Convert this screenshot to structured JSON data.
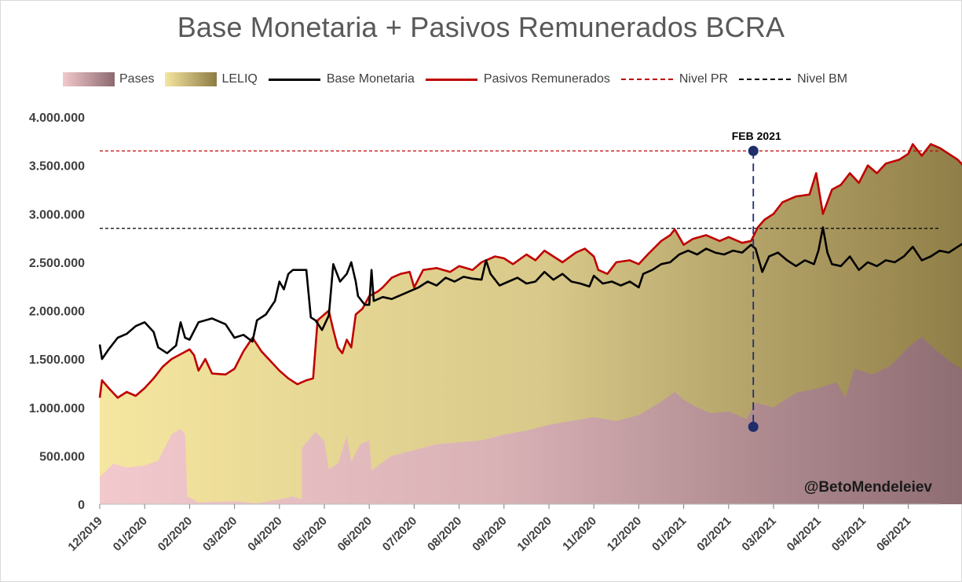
{
  "title": "Base Monetaria + Pasivos Remunerados BCRA",
  "legend": {
    "pases": "Pases",
    "leliq": "LELIQ",
    "bm": "Base Monetaria",
    "pr": "Pasivos Remunerados",
    "nivel_pr": "Nivel PR",
    "nivel_bm": "Nivel BM"
  },
  "colors": {
    "pases_light": "#f2c9cc",
    "pases_dark": "#8b6a70",
    "leliq_light": "#f5e6a0",
    "leliq_dark": "#8d7b45",
    "bm_line": "#000000",
    "pr_line": "#c00000",
    "marker": "#1f2d6b",
    "axis_text": "#404040"
  },
  "watermark": "@BetoMendeleiev",
  "chart_data": {
    "type": "area",
    "title": "Base Monetaria + Pasivos Remunerados BCRA",
    "xlabel": "",
    "ylabel": "",
    "ylim": [
      0,
      4000000
    ],
    "y_ticks": [
      0,
      500000,
      1000000,
      1500000,
      2000000,
      2500000,
      3000000,
      3500000,
      4000000
    ],
    "y_tick_labels": [
      "0",
      "500.000",
      "1.000.000",
      "1.500.000",
      "2.000.000",
      "2.500.000",
      "3.000.000",
      "3.500.000",
      "4.000.000"
    ],
    "x_range": [
      0,
      19.7
    ],
    "x_ticks": [
      0,
      1,
      2,
      3,
      4,
      5,
      6,
      7,
      8,
      9,
      10,
      11,
      12,
      13,
      14,
      15,
      16,
      17,
      18
    ],
    "x_tick_labels": [
      "12/2019",
      "01/2020",
      "02/2020",
      "03/2020",
      "04/2020",
      "05/2020",
      "06/2020",
      "07/2020",
      "08/2020",
      "09/2020",
      "10/2020",
      "11/2020",
      "12/2020",
      "01/2021",
      "02/2021",
      "03/2021",
      "04/2021",
      "05/2021",
      "06/2021"
    ],
    "x_note": "x in months since 12/2019",
    "series": [
      {
        "name": "Pases",
        "type": "area",
        "points": [
          [
            0,
            280000
          ],
          [
            0.3,
            420000
          ],
          [
            0.6,
            380000
          ],
          [
            1.0,
            400000
          ],
          [
            1.3,
            450000
          ],
          [
            1.6,
            720000
          ],
          [
            1.8,
            780000
          ],
          [
            1.9,
            720000
          ],
          [
            1.95,
            80000
          ],
          [
            2.2,
            20000
          ],
          [
            3.0,
            30000
          ],
          [
            3.5,
            10000
          ],
          [
            4.0,
            50000
          ],
          [
            4.3,
            80000
          ],
          [
            4.5,
            50000
          ],
          [
            4.5,
            580000
          ],
          [
            4.8,
            750000
          ],
          [
            5.0,
            650000
          ],
          [
            5.1,
            360000
          ],
          [
            5.3,
            420000
          ],
          [
            5.5,
            700000
          ],
          [
            5.6,
            440000
          ],
          [
            5.8,
            620000
          ],
          [
            6.0,
            660000
          ],
          [
            6.05,
            350000
          ],
          [
            6.5,
            500000
          ],
          [
            7.0,
            560000
          ],
          [
            7.5,
            620000
          ],
          [
            8.0,
            640000
          ],
          [
            8.5,
            660000
          ],
          [
            9.0,
            720000
          ],
          [
            9.5,
            760000
          ],
          [
            10.0,
            820000
          ],
          [
            10.5,
            860000
          ],
          [
            11.0,
            900000
          ],
          [
            11.5,
            860000
          ],
          [
            12.0,
            920000
          ],
          [
            12.5,
            1060000
          ],
          [
            12.8,
            1160000
          ],
          [
            13.0,
            1080000
          ],
          [
            13.3,
            1000000
          ],
          [
            13.6,
            940000
          ],
          [
            14.0,
            960000
          ],
          [
            14.4,
            880000
          ],
          [
            14.6,
            1050000
          ],
          [
            15.0,
            1000000
          ],
          [
            15.5,
            1150000
          ],
          [
            16.0,
            1200000
          ],
          [
            16.4,
            1260000
          ],
          [
            16.6,
            1100000
          ],
          [
            16.8,
            1400000
          ],
          [
            17.2,
            1340000
          ],
          [
            17.6,
            1430000
          ],
          [
            18.0,
            1620000
          ],
          [
            18.3,
            1730000
          ],
          [
            18.6,
            1600000
          ],
          [
            19.0,
            1450000
          ],
          [
            19.3,
            1370000
          ],
          [
            19.6,
            1590000
          ]
        ]
      },
      {
        "name": "LELIQ",
        "type": "area",
        "note": "stacked on Pases; top equals Pasivos Remunerados"
      },
      {
        "name": "Base Monetaria",
        "type": "line",
        "points": [
          [
            0,
            1650000
          ],
          [
            0.05,
            1500000
          ],
          [
            0.2,
            1600000
          ],
          [
            0.4,
            1720000
          ],
          [
            0.6,
            1760000
          ],
          [
            0.8,
            1840000
          ],
          [
            1.0,
            1880000
          ],
          [
            1.2,
            1780000
          ],
          [
            1.3,
            1620000
          ],
          [
            1.5,
            1560000
          ],
          [
            1.7,
            1640000
          ],
          [
            1.8,
            1880000
          ],
          [
            1.9,
            1720000
          ],
          [
            2.0,
            1700000
          ],
          [
            2.2,
            1880000
          ],
          [
            2.5,
            1920000
          ],
          [
            2.8,
            1860000
          ],
          [
            3.0,
            1720000
          ],
          [
            3.2,
            1750000
          ],
          [
            3.4,
            1680000
          ],
          [
            3.5,
            1900000
          ],
          [
            3.7,
            1960000
          ],
          [
            3.9,
            2100000
          ],
          [
            4.0,
            2300000
          ],
          [
            4.1,
            2220000
          ],
          [
            4.2,
            2380000
          ],
          [
            4.3,
            2420000
          ],
          [
            4.5,
            2420000
          ],
          [
            4.6,
            2420000
          ],
          [
            4.7,
            1930000
          ],
          [
            4.8,
            1900000
          ],
          [
            4.95,
            1800000
          ],
          [
            5.1,
            1950000
          ],
          [
            5.2,
            2480000
          ],
          [
            5.35,
            2300000
          ],
          [
            5.5,
            2380000
          ],
          [
            5.6,
            2500000
          ],
          [
            5.7,
            2300000
          ],
          [
            5.75,
            2150000
          ],
          [
            5.9,
            2060000
          ],
          [
            6.0,
            2060000
          ],
          [
            6.05,
            2420000
          ],
          [
            6.1,
            2100000
          ],
          [
            6.3,
            2140000
          ],
          [
            6.5,
            2120000
          ],
          [
            6.7,
            2160000
          ],
          [
            6.9,
            2200000
          ],
          [
            7.1,
            2240000
          ],
          [
            7.3,
            2300000
          ],
          [
            7.5,
            2260000
          ],
          [
            7.7,
            2340000
          ],
          [
            7.9,
            2300000
          ],
          [
            8.1,
            2350000
          ],
          [
            8.3,
            2330000
          ],
          [
            8.5,
            2320000
          ],
          [
            8.6,
            2520000
          ],
          [
            8.7,
            2380000
          ],
          [
            8.9,
            2260000
          ],
          [
            9.1,
            2300000
          ],
          [
            9.3,
            2340000
          ],
          [
            9.5,
            2280000
          ],
          [
            9.7,
            2300000
          ],
          [
            9.9,
            2400000
          ],
          [
            10.1,
            2320000
          ],
          [
            10.3,
            2380000
          ],
          [
            10.5,
            2300000
          ],
          [
            10.7,
            2280000
          ],
          [
            10.9,
            2250000
          ],
          [
            11.0,
            2360000
          ],
          [
            11.2,
            2280000
          ],
          [
            11.4,
            2300000
          ],
          [
            11.6,
            2260000
          ],
          [
            11.8,
            2300000
          ],
          [
            12.0,
            2240000
          ],
          [
            12.1,
            2380000
          ],
          [
            12.3,
            2420000
          ],
          [
            12.5,
            2480000
          ],
          [
            12.7,
            2500000
          ],
          [
            12.9,
            2580000
          ],
          [
            13.1,
            2620000
          ],
          [
            13.3,
            2580000
          ],
          [
            13.5,
            2640000
          ],
          [
            13.7,
            2600000
          ],
          [
            13.9,
            2580000
          ],
          [
            14.1,
            2620000
          ],
          [
            14.3,
            2600000
          ],
          [
            14.5,
            2680000
          ],
          [
            14.6,
            2640000
          ],
          [
            14.75,
            2400000
          ],
          [
            14.9,
            2560000
          ],
          [
            15.1,
            2600000
          ],
          [
            15.3,
            2520000
          ],
          [
            15.5,
            2460000
          ],
          [
            15.7,
            2520000
          ],
          [
            15.9,
            2480000
          ],
          [
            16.0,
            2620000
          ],
          [
            16.1,
            2860000
          ],
          [
            16.2,
            2600000
          ],
          [
            16.3,
            2480000
          ],
          [
            16.5,
            2460000
          ],
          [
            16.7,
            2560000
          ],
          [
            16.9,
            2420000
          ],
          [
            17.1,
            2500000
          ],
          [
            17.3,
            2460000
          ],
          [
            17.5,
            2520000
          ],
          [
            17.7,
            2500000
          ],
          [
            17.9,
            2560000
          ],
          [
            18.1,
            2660000
          ],
          [
            18.3,
            2520000
          ],
          [
            18.5,
            2560000
          ],
          [
            18.7,
            2620000
          ],
          [
            18.9,
            2600000
          ],
          [
            19.1,
            2660000
          ],
          [
            19.3,
            2720000
          ],
          [
            19.45,
            2900000
          ],
          [
            19.6,
            2800000
          ]
        ]
      },
      {
        "name": "Pasivos Remunerados",
        "type": "line",
        "points": [
          [
            0,
            1100000
          ],
          [
            0.05,
            1280000
          ],
          [
            0.2,
            1200000
          ],
          [
            0.4,
            1100000
          ],
          [
            0.6,
            1160000
          ],
          [
            0.8,
            1120000
          ],
          [
            1.0,
            1200000
          ],
          [
            1.2,
            1300000
          ],
          [
            1.4,
            1420000
          ],
          [
            1.6,
            1500000
          ],
          [
            1.8,
            1550000
          ],
          [
            2.0,
            1600000
          ],
          [
            2.1,
            1540000
          ],
          [
            2.2,
            1380000
          ],
          [
            2.35,
            1500000
          ],
          [
            2.5,
            1350000
          ],
          [
            2.8,
            1340000
          ],
          [
            3.0,
            1400000
          ],
          [
            3.2,
            1580000
          ],
          [
            3.4,
            1720000
          ],
          [
            3.6,
            1580000
          ],
          [
            3.8,
            1480000
          ],
          [
            4.0,
            1380000
          ],
          [
            4.2,
            1300000
          ],
          [
            4.4,
            1240000
          ],
          [
            4.6,
            1280000
          ],
          [
            4.75,
            1300000
          ],
          [
            4.85,
            1900000
          ],
          [
            5.0,
            1960000
          ],
          [
            5.1,
            2000000
          ],
          [
            5.2,
            1800000
          ],
          [
            5.3,
            1620000
          ],
          [
            5.4,
            1560000
          ],
          [
            5.5,
            1700000
          ],
          [
            5.6,
            1620000
          ],
          [
            5.7,
            1960000
          ],
          [
            5.85,
            2020000
          ],
          [
            6.0,
            2150000
          ],
          [
            6.2,
            2200000
          ],
          [
            6.3,
            2240000
          ],
          [
            6.5,
            2340000
          ],
          [
            6.7,
            2380000
          ],
          [
            6.9,
            2400000
          ],
          [
            7.0,
            2240000
          ],
          [
            7.2,
            2420000
          ],
          [
            7.5,
            2440000
          ],
          [
            7.8,
            2400000
          ],
          [
            8.0,
            2460000
          ],
          [
            8.3,
            2420000
          ],
          [
            8.5,
            2500000
          ],
          [
            8.8,
            2560000
          ],
          [
            9.0,
            2540000
          ],
          [
            9.2,
            2480000
          ],
          [
            9.5,
            2580000
          ],
          [
            9.7,
            2520000
          ],
          [
            9.9,
            2620000
          ],
          [
            10.1,
            2560000
          ],
          [
            10.3,
            2500000
          ],
          [
            10.6,
            2600000
          ],
          [
            10.8,
            2640000
          ],
          [
            11.0,
            2560000
          ],
          [
            11.1,
            2420000
          ],
          [
            11.3,
            2380000
          ],
          [
            11.5,
            2500000
          ],
          [
            11.8,
            2520000
          ],
          [
            12.0,
            2480000
          ],
          [
            12.2,
            2580000
          ],
          [
            12.5,
            2720000
          ],
          [
            12.7,
            2780000
          ],
          [
            12.8,
            2840000
          ],
          [
            13.0,
            2680000
          ],
          [
            13.2,
            2740000
          ],
          [
            13.5,
            2780000
          ],
          [
            13.8,
            2720000
          ],
          [
            14.0,
            2760000
          ],
          [
            14.3,
            2700000
          ],
          [
            14.5,
            2720000
          ],
          [
            14.65,
            2860000
          ],
          [
            14.8,
            2940000
          ],
          [
            15.0,
            3000000
          ],
          [
            15.2,
            3120000
          ],
          [
            15.5,
            3180000
          ],
          [
            15.8,
            3200000
          ],
          [
            15.95,
            3420000
          ],
          [
            16.1,
            3000000
          ],
          [
            16.3,
            3250000
          ],
          [
            16.5,
            3300000
          ],
          [
            16.7,
            3420000
          ],
          [
            16.9,
            3320000
          ],
          [
            17.1,
            3500000
          ],
          [
            17.3,
            3420000
          ],
          [
            17.5,
            3520000
          ],
          [
            17.8,
            3560000
          ],
          [
            18.0,
            3620000
          ],
          [
            18.1,
            3720000
          ],
          [
            18.3,
            3600000
          ],
          [
            18.5,
            3720000
          ],
          [
            18.7,
            3680000
          ],
          [
            18.9,
            3620000
          ],
          [
            19.1,
            3560000
          ],
          [
            19.3,
            3460000
          ],
          [
            19.5,
            3520000
          ],
          [
            19.6,
            3640000
          ]
        ]
      }
    ],
    "reference_lines": [
      {
        "name": "Nivel PR",
        "y": 3650000,
        "color": "#c00000",
        "style": "dashed"
      },
      {
        "name": "Nivel BM",
        "y": 2850000,
        "color": "#000000",
        "style": "dashed"
      }
    ],
    "annotations": [
      {
        "text": "FEB 2021",
        "x": 14.55,
        "y_top": 3650000,
        "y_bottom": 800000
      }
    ],
    "legend_position": "top"
  }
}
